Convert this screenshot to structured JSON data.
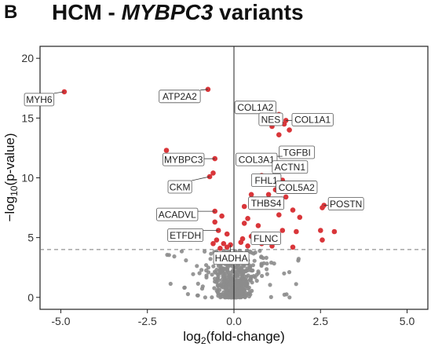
{
  "panel": "B",
  "title_parts": [
    "HCM - ",
    "MYBPC3",
    " variants"
  ],
  "chart_data": {
    "type": "scatter",
    "title": "HCM - MYBPC3 variants",
    "xlabel": "log2(fold-change)",
    "ylabel": "-log10(p-value)",
    "xlim": [
      -5.6,
      5.6
    ],
    "ylim": [
      -1,
      21
    ],
    "xticks": [
      -5.0,
      -2.5,
      0.0,
      2.5,
      5.0
    ],
    "xtick_labels": [
      "-5.0",
      "-2.5",
      "0.0",
      "2.5",
      "5.0"
    ],
    "yticks": [
      0,
      5,
      10,
      15,
      20
    ],
    "ytick_labels": [
      "0",
      "5",
      "10",
      "15",
      "20"
    ],
    "threshold_y": 4.0,
    "vertical_line_x": 0,
    "colors": {
      "significant": "#d9363a",
      "nonsignificant": "#8c8c8c",
      "threshold": "#7a7a7a"
    },
    "significant_points": [
      [
        -4.9,
        17.2
      ],
      [
        -0.75,
        17.4
      ],
      [
        -1.95,
        12.3
      ],
      [
        -0.55,
        11.6
      ],
      [
        -0.6,
        10.4
      ],
      [
        -0.7,
        10.1
      ],
      [
        -0.55,
        7.2
      ],
      [
        -0.35,
        6.8
      ],
      [
        -0.55,
        6.3
      ],
      [
        -0.45,
        5.6
      ],
      [
        -0.2,
        5.3
      ],
      [
        -0.5,
        4.8
      ],
      [
        -0.3,
        4.5
      ],
      [
        -0.2,
        4.2
      ],
      [
        -0.1,
        4.4
      ],
      [
        -0.6,
        4.5
      ],
      [
        -0.4,
        4.1
      ],
      [
        1.3,
        15.3
      ],
      [
        1.5,
        14.8
      ],
      [
        1.45,
        14.5
      ],
      [
        1.6,
        14.0
      ],
      [
        1.1,
        14.3
      ],
      [
        1.3,
        13.6
      ],
      [
        1.5,
        12.2
      ],
      [
        1.4,
        11.8
      ],
      [
        0.55,
        11.6
      ],
      [
        1.0,
        11.5
      ],
      [
        1.3,
        11.1
      ],
      [
        1.5,
        10.6
      ],
      [
        0.8,
        10.2
      ],
      [
        1.25,
        10.0
      ],
      [
        1.4,
        9.8
      ],
      [
        0.6,
        9.5
      ],
      [
        1.6,
        9.2
      ],
      [
        1.2,
        9.0
      ],
      [
        1.0,
        8.6
      ],
      [
        0.5,
        8.6
      ],
      [
        0.8,
        8.0
      ],
      [
        1.5,
        8.4
      ],
      [
        1.1,
        8.2
      ],
      [
        0.3,
        7.6
      ],
      [
        1.7,
        7.3
      ],
      [
        2.6,
        7.7
      ],
      [
        2.55,
        7.5
      ],
      [
        0.4,
        6.6
      ],
      [
        1.3,
        6.9
      ],
      [
        1.9,
        6.7
      ],
      [
        0.3,
        6.2
      ],
      [
        0.7,
        6.0
      ],
      [
        1.4,
        5.6
      ],
      [
        1.8,
        5.5
      ],
      [
        2.5,
        5.6
      ],
      [
        2.9,
        5.5
      ],
      [
        0.5,
        5.1
      ],
      [
        0.9,
        5.2
      ],
      [
        1.0,
        4.7
      ],
      [
        2.55,
        4.8
      ],
      [
        0.25,
        4.9
      ],
      [
        0.6,
        4.6
      ],
      [
        0.4,
        4.3
      ],
      [
        1.1,
        4.3
      ],
      [
        0.8,
        4.5
      ],
      [
        0.2,
        4.6
      ],
      [
        1.7,
        4.2
      ]
    ],
    "labeled_genes": [
      {
        "gene": "MYH6",
        "x": -4.9,
        "y": 17.2
      },
      {
        "gene": "ATP2A2",
        "x": -0.75,
        "y": 17.4
      },
      {
        "gene": "MYBPC3",
        "x": -0.55,
        "y": 11.6
      },
      {
        "gene": "CKM",
        "x": -0.7,
        "y": 10.1
      },
      {
        "gene": "ACADVL",
        "x": -0.55,
        "y": 7.2
      },
      {
        "gene": "ETFDH",
        "x": -0.45,
        "y": 5.6
      },
      {
        "gene": "HADHA",
        "x": -0.1,
        "y": 4.4
      },
      {
        "gene": "COL1A2",
        "x": 1.3,
        "y": 15.3
      },
      {
        "gene": "COL1A1",
        "x": 1.5,
        "y": 14.8
      },
      {
        "gene": "NES",
        "x": 1.45,
        "y": 14.5
      },
      {
        "gene": "TGFBI",
        "x": 1.5,
        "y": 12.2
      },
      {
        "gene": "COL3A1",
        "x": 1.4,
        "y": 11.8
      },
      {
        "gene": "FHL1",
        "x": 1.25,
        "y": 10.0
      },
      {
        "gene": "ACTN1",
        "x": 1.3,
        "y": 11.1
      },
      {
        "gene": "COL5A2",
        "x": 1.4,
        "y": 9.8
      },
      {
        "gene": "THBS4",
        "x": 1.0,
        "y": 8.6
      },
      {
        "gene": "POSTN",
        "x": 2.6,
        "y": 7.7
      },
      {
        "gene": "FLNC",
        "x": 0.9,
        "y": 5.2
      }
    ]
  }
}
